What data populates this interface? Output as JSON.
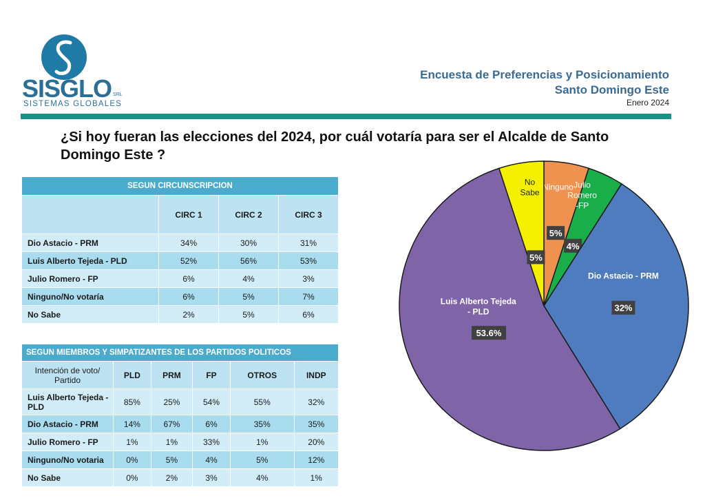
{
  "logo": {
    "name": "SISGLO",
    "suffix": "SRL",
    "subtitle": "SISTEMAS GLOBALES"
  },
  "header": {
    "title": "Encuesta de Preferencias y Posicionamiento",
    "location": "Santo Domingo Este",
    "date": "Enero 2024"
  },
  "question": "¿Si hoy fueran las elecciones del 2024, por cuál votaría para ser el Alcalde de Santo Domingo Este ?",
  "table_circ": {
    "caption": "SEGUN CIRCUNSCRIPCION",
    "columns": [
      "CIRC 1",
      "CIRC 2",
      "CIRC 3"
    ],
    "rows": [
      {
        "label": "Dio Astacio - PRM",
        "values": [
          "34%",
          "30%",
          "31%"
        ]
      },
      {
        "label": "Luis Alberto Tejeda - PLD",
        "values": [
          "52%",
          "56%",
          "53%"
        ]
      },
      {
        "label": "Julio Romero - FP",
        "values": [
          "6%",
          "4%",
          "3%"
        ]
      },
      {
        "label": "Ninguno/No votaría",
        "values": [
          "6%",
          "5%",
          "7%"
        ]
      },
      {
        "label": "No Sabe",
        "values": [
          "2%",
          "5%",
          "6%"
        ]
      }
    ]
  },
  "table_party": {
    "caption": "SEGUN MIEMBROS Y SIMPATIZANTES DE LOS PARTIDOS POLITICOS",
    "corner": "Intención de voto/ Partido",
    "columns": [
      "PLD",
      "PRM",
      "FP",
      "OTROS",
      "INDP"
    ],
    "rows": [
      {
        "label": "Luis Alberto Tejeda - PLD",
        "values": [
          "85%",
          "25%",
          "54%",
          "55%",
          "32%"
        ]
      },
      {
        "label": "Dio Astacio - PRM",
        "values": [
          "14%",
          "67%",
          "6%",
          "35%",
          "35%"
        ]
      },
      {
        "label": "Julio Romero - FP",
        "values": [
          "1%",
          "1%",
          "33%",
          "1%",
          "20%"
        ]
      },
      {
        "label": "Ninguno/No votaria",
        "values": [
          "0%",
          "5%",
          "4%",
          "5%",
          "12%"
        ]
      },
      {
        "label": "No Sabe",
        "values": [
          "0%",
          "2%",
          "3%",
          "4%",
          "1%"
        ]
      }
    ]
  },
  "chart_data": {
    "type": "pie",
    "slices": [
      {
        "label": "Ninguno",
        "value": 5,
        "display": "5%",
        "color": "#f0924f",
        "label_color": "#ffffff"
      },
      {
        "label": "Julio Romero -FP",
        "value": 4,
        "display": "4%",
        "color": "#1aae4a",
        "label_color": "#ffffff"
      },
      {
        "label": "Dio Astacio - PRM",
        "value": 32,
        "display": "32%",
        "color": "#4f7cbf",
        "label_color": "#ffffff"
      },
      {
        "label": "Luis Alberto Tejeda - PLD",
        "value": 53.6,
        "display": "53.6%",
        "color": "#8064a8",
        "label_color": "#ffffff"
      },
      {
        "label": "No Sabe",
        "value": 5,
        "display": "5%",
        "color": "#f5f000",
        "label_color": "#222222"
      }
    ]
  }
}
